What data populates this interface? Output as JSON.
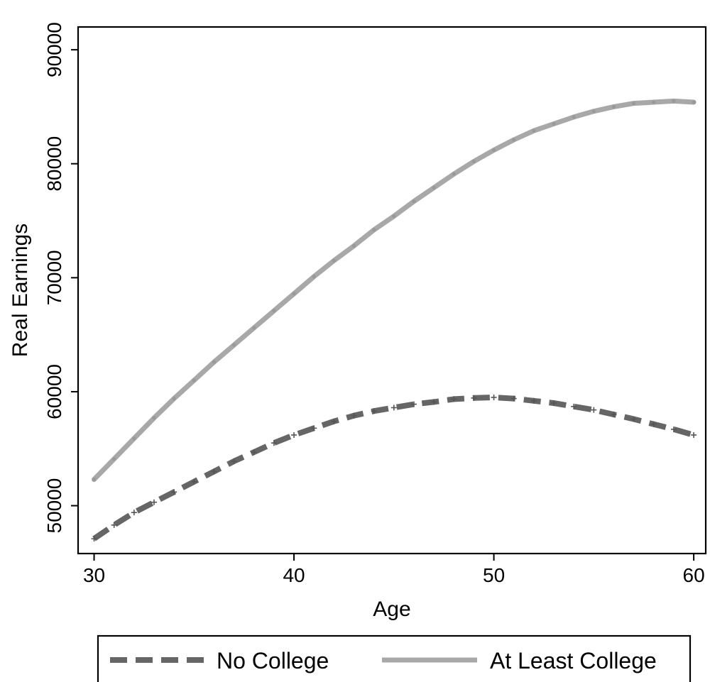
{
  "chart_data": {
    "type": "line",
    "xlabel": "Age",
    "ylabel": "Real Earnings",
    "xlim": [
      29.2,
      60.6
    ],
    "ylim": [
      45800,
      92000
    ],
    "xticks": [
      30,
      40,
      50,
      60
    ],
    "yticks": [
      50000,
      60000,
      70000,
      80000,
      90000
    ],
    "grid": false,
    "legend": "bottom",
    "x": [
      30,
      31,
      32,
      33,
      34,
      35,
      36,
      37,
      38,
      39,
      40,
      41,
      42,
      43,
      44,
      45,
      46,
      47,
      48,
      49,
      50,
      51,
      52,
      53,
      54,
      55,
      56,
      57,
      58,
      59,
      60
    ],
    "series": [
      {
        "name": "No College",
        "color": "#666666",
        "style": "dashed",
        "values": [
          47100,
          48300,
          49400,
          50300,
          51200,
          52100,
          53000,
          53900,
          54700,
          55500,
          56200,
          56800,
          57400,
          57900,
          58300,
          58600,
          58900,
          59100,
          59350,
          59450,
          59500,
          59400,
          59200,
          59000,
          58700,
          58400,
          58000,
          57600,
          57150,
          56700,
          56200
        ]
      },
      {
        "name": "At Least College",
        "color": "#a8a8a8",
        "style": "solid",
        "values": [
          52300,
          54100,
          55900,
          57700,
          59400,
          61000,
          62600,
          64100,
          65600,
          67100,
          68600,
          70100,
          71500,
          72800,
          74200,
          75400,
          76700,
          77900,
          79100,
          80200,
          81200,
          82100,
          82900,
          83500,
          84100,
          84600,
          85000,
          85300,
          85400,
          85500,
          85400
        ]
      }
    ]
  }
}
